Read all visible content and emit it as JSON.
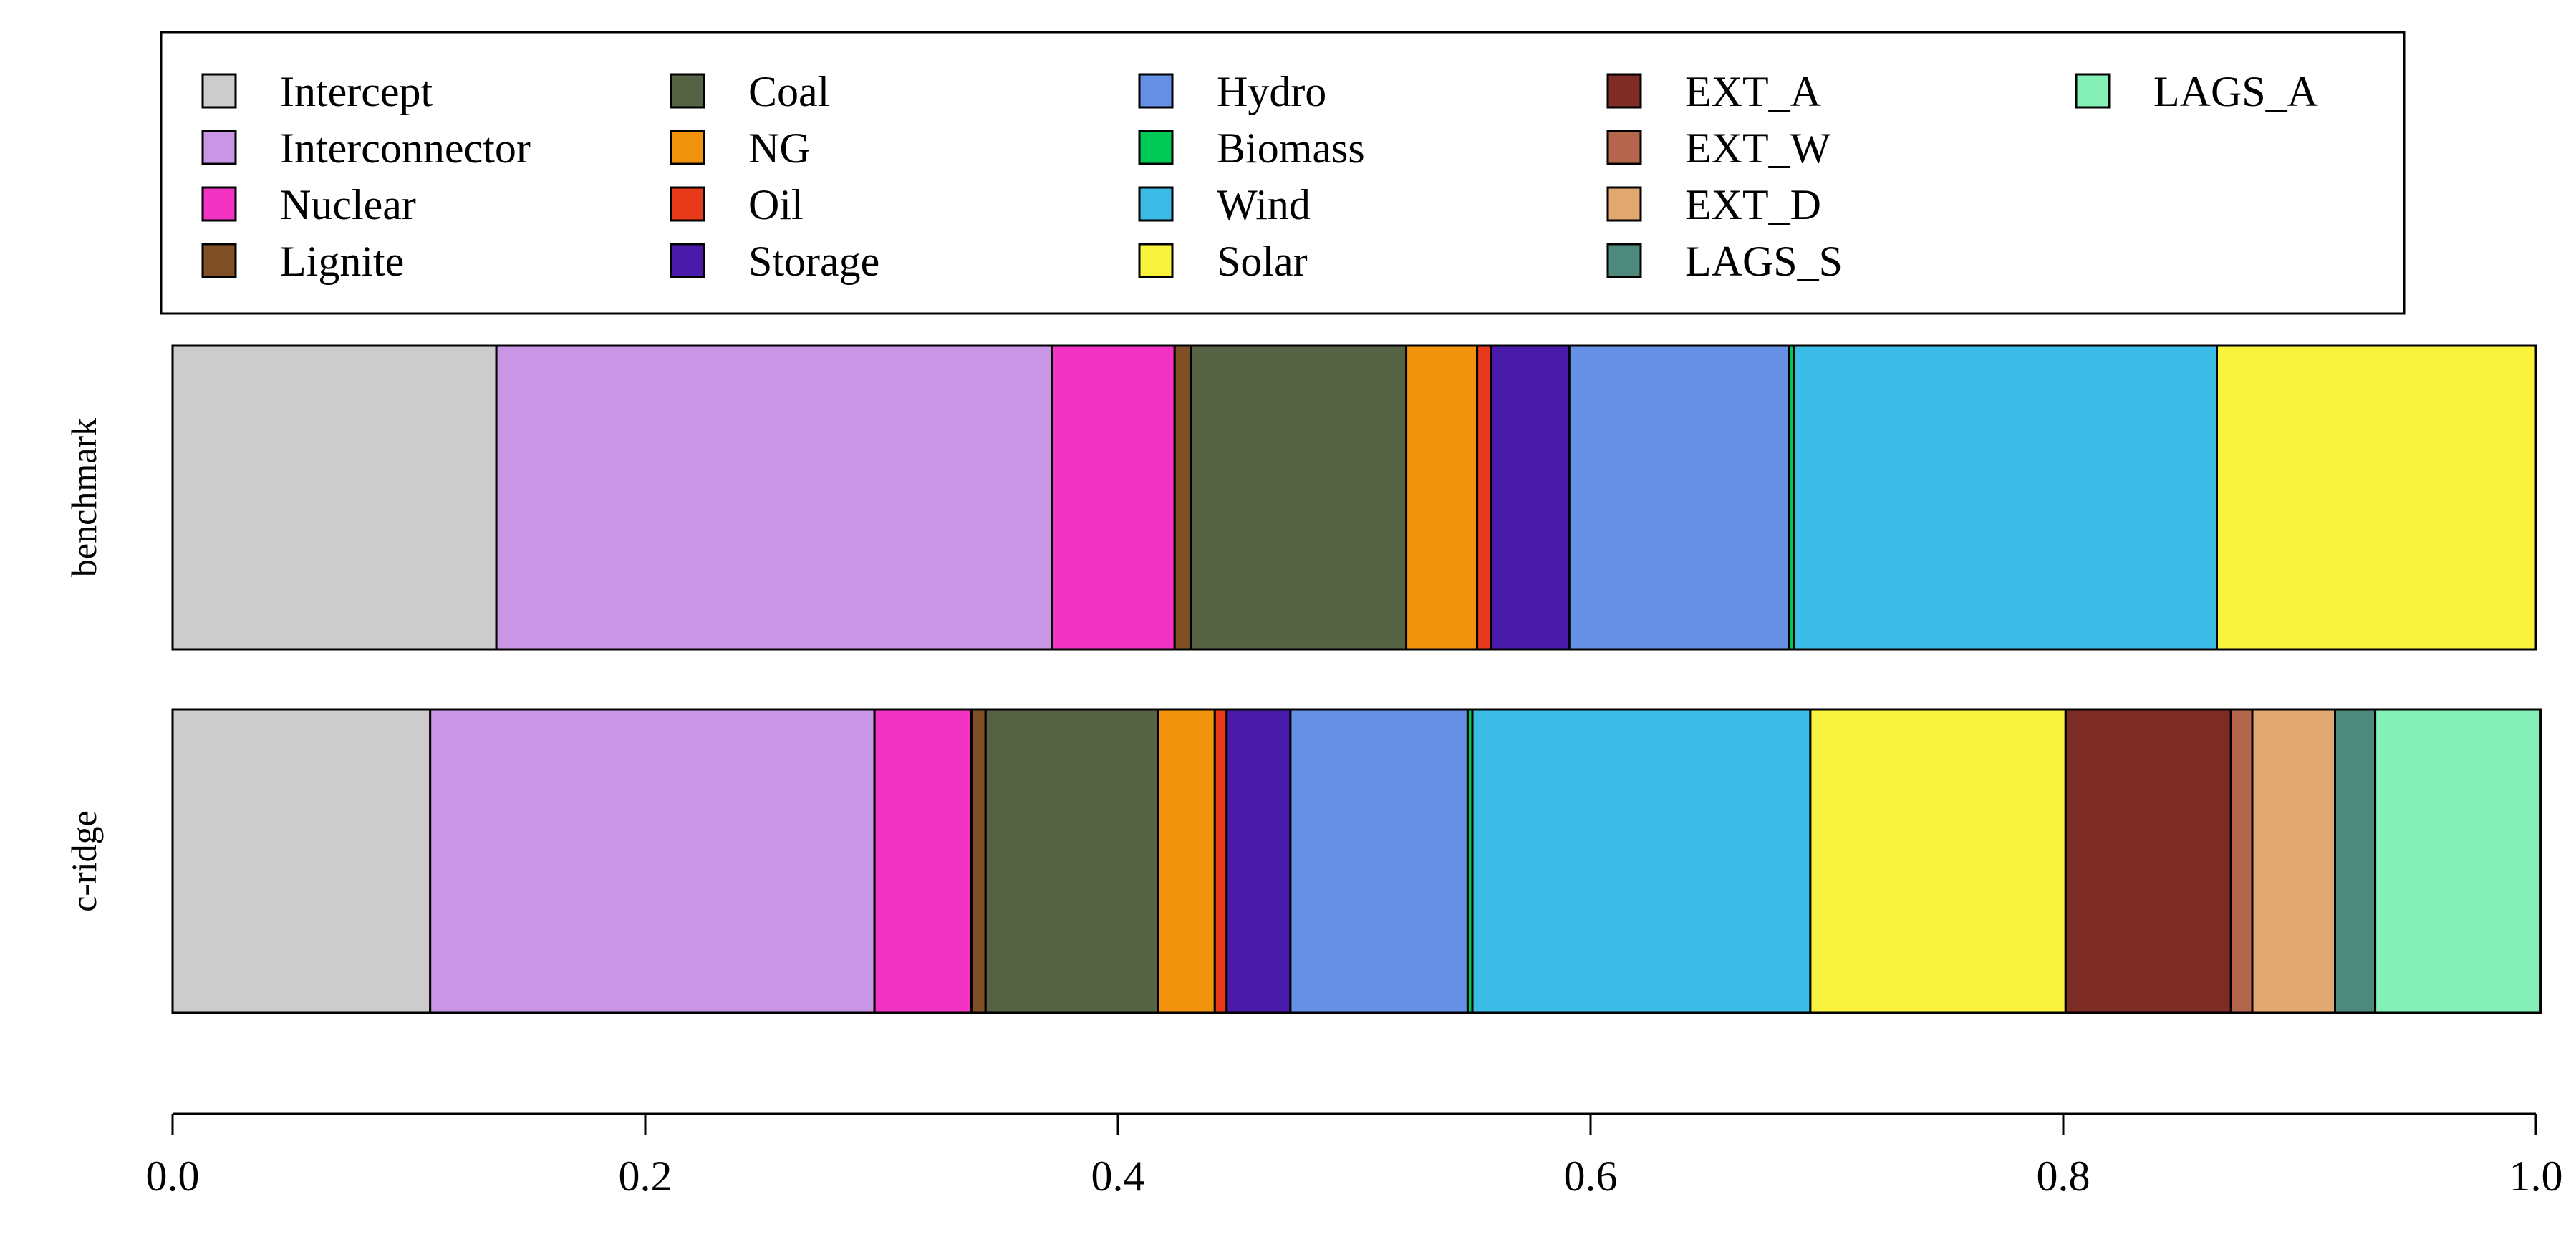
{
  "chart_data": {
    "type": "bar",
    "orientation": "horizontal-stacked",
    "categories": [
      "benchmark",
      "c-ridge"
    ],
    "xlim": [
      0,
      1
    ],
    "x_ticks": [
      "0.0",
      "0.2",
      "0.4",
      "0.6",
      "0.8",
      "1.0"
    ],
    "x_tick_values": [
      0,
      0.2,
      0.4,
      0.6,
      0.8,
      1.0
    ],
    "legend_position": "top",
    "series": [
      {
        "name": "Intercept",
        "color": "#CCCCCC",
        "values": [
          0.137,
          0.109
        ]
      },
      {
        "name": "Interconnector",
        "color": "#C996E6",
        "values": [
          0.235,
          0.188
        ]
      },
      {
        "name": "Nuclear",
        "color": "#F233C4",
        "values": [
          0.052,
          0.041
        ]
      },
      {
        "name": "Lignite",
        "color": "#7F4F25",
        "values": [
          0.007,
          0.006
        ]
      },
      {
        "name": "Coal",
        "color": "#556244",
        "values": [
          0.091,
          0.073
        ]
      },
      {
        "name": "NG",
        "color": "#F2930D",
        "values": [
          0.03,
          0.024
        ]
      },
      {
        "name": "Oil",
        "color": "#E8391B",
        "values": [
          0.006,
          0.005
        ]
      },
      {
        "name": "Storage",
        "color": "#4A1AAA",
        "values": [
          0.033,
          0.027
        ]
      },
      {
        "name": "Hydro",
        "color": "#6690E6",
        "values": [
          0.093,
          0.075
        ]
      },
      {
        "name": "Biomass",
        "color": "#00C957",
        "values": [
          0.002,
          0.002
        ]
      },
      {
        "name": "Wind",
        "color": "#3BBCE6",
        "values": [
          0.179,
          0.143
        ]
      },
      {
        "name": "Solar",
        "color": "#FAF33E",
        "values": [
          0.135,
          0.108
        ]
      },
      {
        "name": "EXT_A",
        "color": "#7E2D26",
        "values": [
          0.0,
          0.07
        ]
      },
      {
        "name": "EXT_W",
        "color": "#B5674D",
        "values": [
          0.0,
          0.009
        ]
      },
      {
        "name": "EXT_D",
        "color": "#E2A872",
        "values": [
          0.0,
          0.035
        ]
      },
      {
        "name": "LAGS_S",
        "color": "#4E8A7B",
        "values": [
          0.0,
          0.017
        ]
      },
      {
        "name": "LAGS_A",
        "color": "#84F0B7",
        "values": [
          0.0,
          0.07
        ]
      }
    ],
    "title": "",
    "xlabel": "",
    "ylabel": ""
  }
}
